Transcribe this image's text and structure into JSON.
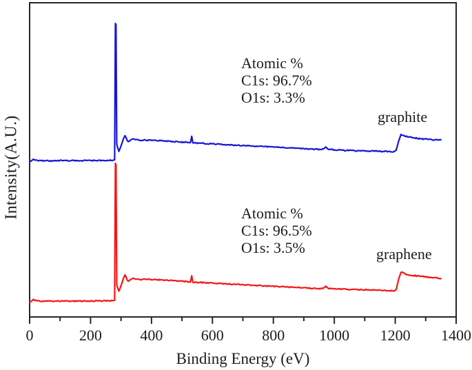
{
  "chart_data": {
    "type": "line",
    "title": "",
    "xlabel": "Binding Energy (eV)",
    "ylabel": "Intensity(A.U.)",
    "x_axis": {
      "min": 0,
      "max": 1400,
      "major_ticks": [
        0,
        200,
        400,
        600,
        800,
        1000,
        1200,
        1400
      ],
      "minor_ticks": [
        100,
        300,
        500,
        700,
        900,
        1100,
        1300
      ],
      "tick_labels": [
        "0",
        "200",
        "400",
        "600",
        "800",
        "1000",
        "1200",
        "1400"
      ]
    },
    "y_axis": {
      "range": [
        0,
        100
      ],
      "units": "arbitrary",
      "ticks": "none"
    },
    "grid": false,
    "legend": "inline-labels",
    "frame_color": "#262626",
    "annotations": {
      "graphite": [
        "Atomic %",
        "C1s: 96.7%",
        "O1s: 3.3%"
      ],
      "graphene": [
        "Atomic %",
        "C1s: 96.5%",
        "O1s: 3.5%"
      ]
    },
    "series": [
      {
        "name": "graphite",
        "color": "#1515d6",
        "points": [
          [
            0,
            49.4
          ],
          [
            6,
            49.7
          ],
          [
            12,
            50.2
          ],
          [
            18,
            49.9
          ],
          [
            40,
            49.7
          ],
          [
            80,
            49.7
          ],
          [
            120,
            49.8
          ],
          [
            160,
            49.7
          ],
          [
            200,
            49.8
          ],
          [
            240,
            49.8
          ],
          [
            262,
            49.8
          ],
          [
            274,
            49.9
          ],
          [
            279,
            50.0
          ],
          [
            281.5,
            93.4
          ],
          [
            283.5,
            93.0
          ],
          [
            286,
            55.0
          ],
          [
            288,
            54.2
          ],
          [
            290,
            53.6
          ],
          [
            293,
            52.7
          ],
          [
            296,
            53.4
          ],
          [
            302,
            55.0
          ],
          [
            308,
            56.7
          ],
          [
            313,
            57.7
          ],
          [
            317,
            57.0
          ],
          [
            321,
            56.0
          ],
          [
            325,
            55.8
          ],
          [
            330,
            56.2
          ],
          [
            336,
            56.6
          ],
          [
            341,
            56.7
          ],
          [
            348,
            56.4
          ],
          [
            360,
            56.2
          ],
          [
            380,
            56.3
          ],
          [
            400,
            56.2
          ],
          [
            430,
            56.1
          ],
          [
            460,
            55.9
          ],
          [
            490,
            55.7
          ],
          [
            515,
            55.6
          ],
          [
            528,
            55.5
          ],
          [
            532,
            57.5
          ],
          [
            536,
            55.4
          ],
          [
            560,
            55.3
          ],
          [
            600,
            55.1
          ],
          [
            650,
            54.8
          ],
          [
            700,
            54.6
          ],
          [
            750,
            54.3
          ],
          [
            800,
            54.1
          ],
          [
            850,
            53.8
          ],
          [
            900,
            53.6
          ],
          [
            930,
            53.4
          ],
          [
            955,
            53.3
          ],
          [
            965,
            53.5
          ],
          [
            972,
            54.1
          ],
          [
            980,
            53.4
          ],
          [
            1000,
            53.2
          ],
          [
            1040,
            53.0
          ],
          [
            1080,
            52.9
          ],
          [
            1120,
            52.8
          ],
          [
            1160,
            52.7
          ],
          [
            1195,
            52.6
          ],
          [
            1203,
            53.0
          ],
          [
            1212,
            56.2
          ],
          [
            1219,
            58.1
          ],
          [
            1228,
            57.8
          ],
          [
            1240,
            57.3
          ],
          [
            1260,
            57.0
          ],
          [
            1285,
            56.7
          ],
          [
            1310,
            56.5
          ],
          [
            1330,
            56.4
          ],
          [
            1350,
            56.4
          ]
        ]
      },
      {
        "name": "graphene",
        "color": "#fa1414",
        "points": [
          [
            0,
            4.7
          ],
          [
            6,
            5.0
          ],
          [
            12,
            5.6
          ],
          [
            18,
            5.2
          ],
          [
            40,
            5.0
          ],
          [
            80,
            5.0
          ],
          [
            120,
            5.1
          ],
          [
            160,
            5.0
          ],
          [
            200,
            5.1
          ],
          [
            240,
            5.1
          ],
          [
            262,
            5.1
          ],
          [
            274,
            5.2
          ],
          [
            279,
            5.3
          ],
          [
            281.5,
            48.9
          ],
          [
            283.5,
            48.5
          ],
          [
            286,
            10.2
          ],
          [
            288,
            9.5
          ],
          [
            290,
            9.0
          ],
          [
            293,
            8.2
          ],
          [
            296,
            8.9
          ],
          [
            302,
            10.5
          ],
          [
            308,
            12.3
          ],
          [
            313,
            13.4
          ],
          [
            317,
            12.6
          ],
          [
            321,
            11.6
          ],
          [
            325,
            11.4
          ],
          [
            330,
            11.8
          ],
          [
            336,
            12.2
          ],
          [
            341,
            12.3
          ],
          [
            348,
            12.0
          ],
          [
            360,
            11.9
          ],
          [
            380,
            12.0
          ],
          [
            400,
            11.9
          ],
          [
            430,
            11.8
          ],
          [
            460,
            11.6
          ],
          [
            490,
            11.4
          ],
          [
            515,
            11.3
          ],
          [
            528,
            11.1
          ],
          [
            532,
            13.1
          ],
          [
            536,
            11.0
          ],
          [
            560,
            11.0
          ],
          [
            600,
            10.8
          ],
          [
            650,
            10.5
          ],
          [
            700,
            10.3
          ],
          [
            750,
            10.0
          ],
          [
            800,
            9.8
          ],
          [
            850,
            9.5
          ],
          [
            900,
            9.3
          ],
          [
            930,
            9.1
          ],
          [
            955,
            9.0
          ],
          [
            965,
            9.2
          ],
          [
            972,
            9.8
          ],
          [
            980,
            9.1
          ],
          [
            1000,
            8.9
          ],
          [
            1040,
            8.8
          ],
          [
            1080,
            8.7
          ],
          [
            1120,
            8.6
          ],
          [
            1160,
            8.4
          ],
          [
            1195,
            8.3
          ],
          [
            1203,
            8.7
          ],
          [
            1212,
            12.3
          ],
          [
            1219,
            14.2
          ],
          [
            1228,
            14.0
          ],
          [
            1240,
            13.5
          ],
          [
            1260,
            13.2
          ],
          [
            1285,
            12.9
          ],
          [
            1310,
            12.7
          ],
          [
            1330,
            12.5
          ],
          [
            1350,
            12.2
          ]
        ]
      }
    ]
  }
}
